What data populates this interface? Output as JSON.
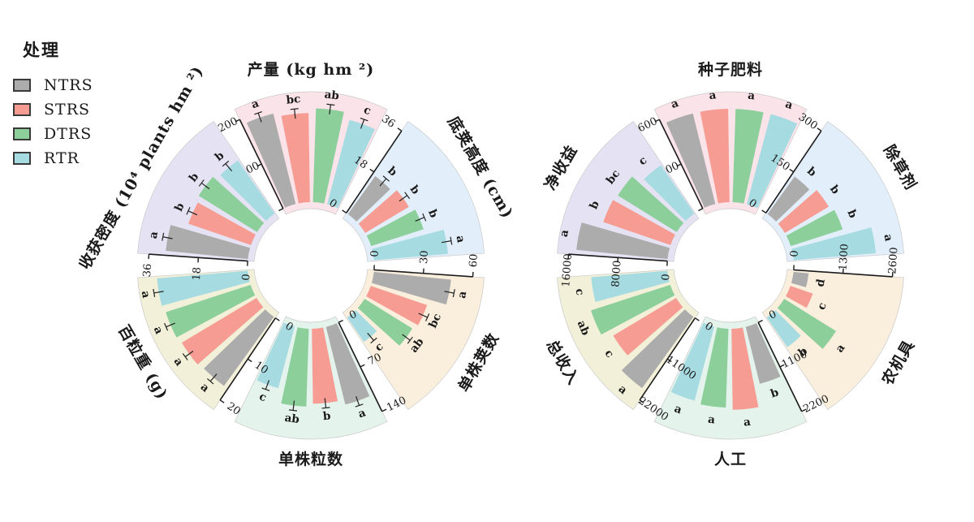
{
  "legend": {
    "title": "处理",
    "items": [
      {
        "label": "NTRS",
        "color": "#acacac"
      },
      {
        "label": "STRS",
        "color": "#f69c92"
      },
      {
        "label": "DTRS",
        "color": "#8ccf9b"
      },
      {
        "label": "RTR",
        "color": "#a7dbe2"
      }
    ]
  },
  "chart_data": {
    "type": "bar",
    "subtype": "polar-grouped-bar",
    "legend_position": "top-left",
    "series": [
      "NTRS",
      "STRS",
      "DTRS",
      "RTR"
    ],
    "circles": [
      {
        "id": "agronomic-circle",
        "center": [
          383,
          327
        ],
        "sectors": [
          {
            "name": "yield",
            "title": "产量 (kg hm ²)",
            "angle": 0,
            "bg": "#fbe3ea",
            "axis": [
              0,
              2100,
              4200
            ],
            "values": [
              3950,
              3780,
              3980,
              3700
            ],
            "letters": [
              "a",
              "bc",
              "ab",
              "c"
            ],
            "error_bars": true
          },
          {
            "name": "bottom-pod-height",
            "title": "底荚高度 (cm)",
            "angle": 60,
            "bg": "#e2effa",
            "axis": [
              0,
              18,
              36
            ],
            "values": [
              17,
              18.5,
              20,
              27
            ],
            "letters": [
              "b",
              "b",
              "b",
              "a"
            ],
            "error_bars": true
          },
          {
            "name": "pods-per-plant",
            "title": "单株荚数",
            "angle": 120,
            "bg": "#faeedd",
            "axis": [
              0,
              30,
              60
            ],
            "values": [
              47,
              36,
              34,
              18
            ],
            "letters": [
              "a",
              "bc",
              "ab",
              "c"
            ],
            "error_bars": true
          },
          {
            "name": "seeds-per-plant",
            "title": "单株粒数",
            "angle": 180,
            "bg": "#e4f3ec",
            "axis": [
              0,
              70,
              140
            ],
            "values": [
              113,
              106,
              110,
              90
            ],
            "letters": [
              "a",
              "b",
              "ab",
              "c"
            ],
            "error_bars": true
          },
          {
            "name": "hundred-seed-weight",
            "title": "百粒重 (g)",
            "angle": 240,
            "bg": "#f2f0d8",
            "axis": [
              0,
              10,
              20
            ],
            "values": [
              17.2,
              17.6,
              18,
              18.4
            ],
            "letters": [
              "a",
              "a",
              "a",
              "a"
            ],
            "error_bars": true
          },
          {
            "name": "harvest-density",
            "title": "收获密度 (10⁴ plants hm ²)",
            "angle": 300,
            "bg": "#e5e3f3",
            "axis": [
              0,
              18,
              36
            ],
            "values": [
              30,
              24,
              25,
              23.5
            ],
            "letters": [
              "a",
              "b",
              "b",
              "b"
            ],
            "error_bars": true
          }
        ]
      },
      {
        "id": "economic-circle",
        "center": [
          900,
          327
        ],
        "sectors": [
          {
            "name": "seed-fertilizer-cost",
            "title": "种子肥料",
            "angle": 0,
            "bg": "#fbe3ea",
            "axis": [
              0,
              1300,
              2600
            ],
            "values": [
              2450,
              2450,
              2450,
              2450
            ],
            "letters": [
              "a",
              "a",
              "a",
              "a"
            ],
            "error_bars": false
          },
          {
            "name": "herbicide-cost",
            "title": "除草剂",
            "angle": 60,
            "bg": "#e2effa",
            "axis": [
              0,
              150,
              300
            ],
            "values": [
              140,
              155,
              165,
              250
            ],
            "letters": [
              "b",
              "b",
              "b",
              "a"
            ],
            "error_bars": false
          },
          {
            "name": "machinery-cost",
            "title": "农机具",
            "angle": 120,
            "bg": "#faeedd",
            "axis": [
              0,
              1300,
              2600
            ],
            "values": [
              400,
              620,
              1600,
              950
            ],
            "letters": [
              "d",
              "c",
              "a",
              "b"
            ],
            "error_bars": false
          },
          {
            "name": "labor-cost",
            "title": "人工",
            "angle": 180,
            "bg": "#e4f3ec",
            "axis": [
              0,
              1100,
              2200
            ],
            "values": [
              1300,
              1800,
              1750,
              1700
            ],
            "letters": [
              "b",
              "a",
              "a",
              "a"
            ],
            "error_bars": false
          },
          {
            "name": "total-income",
            "title": "总收入",
            "angle": 240,
            "bg": "#f2f0d8",
            "axis": [
              0,
              11000,
              22000
            ],
            "values": [
              19500,
              16300,
              18500,
              17000
            ],
            "letters": [
              "a",
              "c",
              "ab",
              "c"
            ],
            "error_bars": false
          },
          {
            "name": "net-profit",
            "title": "净收益",
            "angle": 300,
            "bg": "#e5e3f3",
            "axis": [
              0,
              8000,
              16000
            ],
            "values": [
              14800,
              11500,
              11200,
              9500
            ],
            "letters": [
              "a",
              "b",
              "bc",
              "c"
            ],
            "error_bars": false
          }
        ]
      }
    ]
  }
}
